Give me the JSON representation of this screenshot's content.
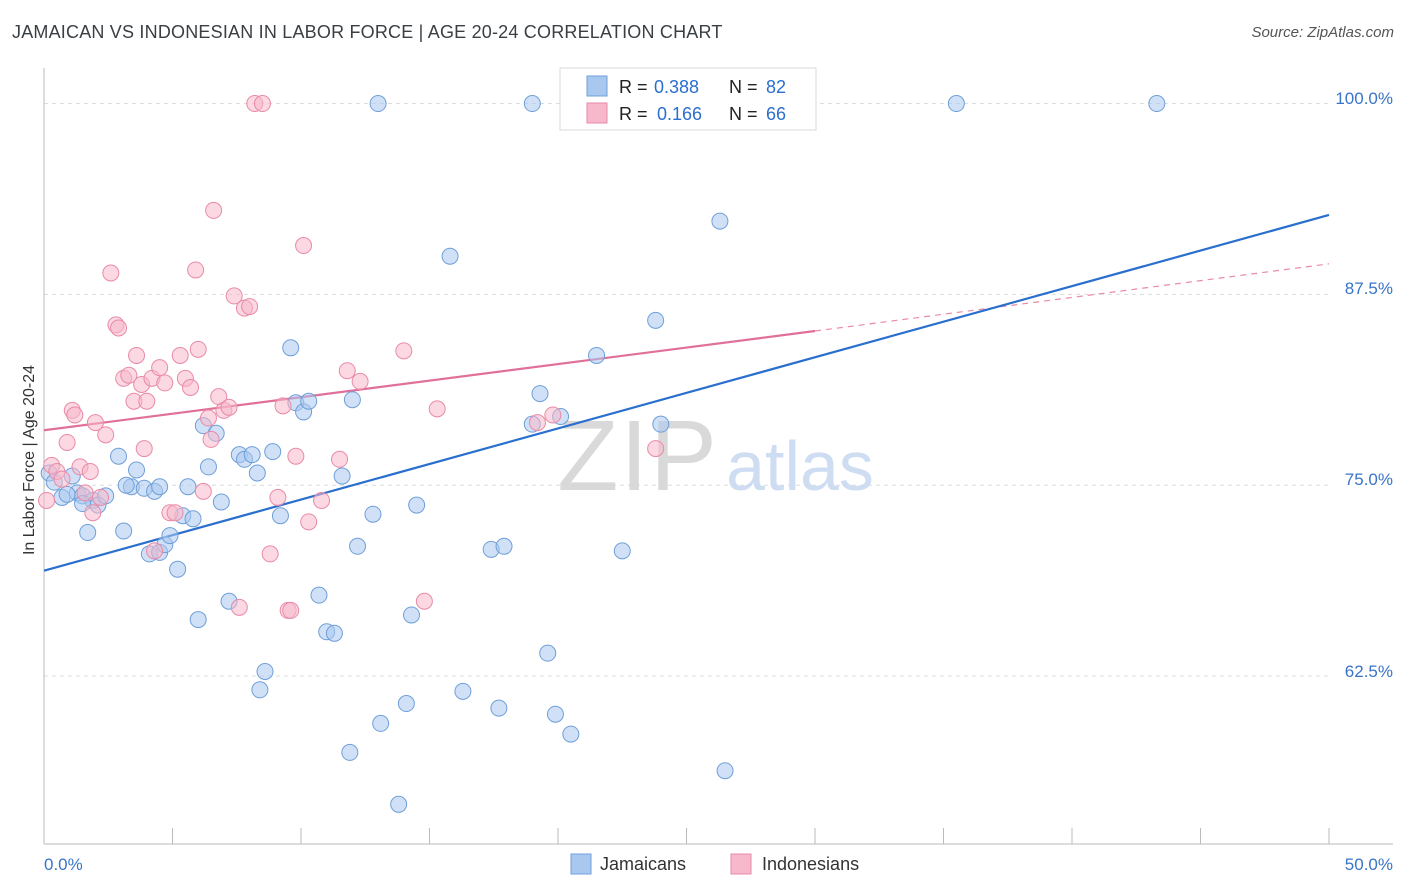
{
  "title": "JAMAICAN VS INDONESIAN IN LABOR FORCE | AGE 20-24 CORRELATION CHART",
  "source": "Source: ZipAtlas.com",
  "watermark": {
    "zip": "ZIP",
    "atlas": "atlas"
  },
  "colors": {
    "blue_fill": "#a9c8f0",
    "blue_stroke": "#6f9fd8",
    "blue_line": "#2a6fce",
    "pink_fill": "#f7b8cb",
    "pink_stroke": "#e98aa8",
    "pink_line": "#e07099",
    "axis_label": "#3a74c8",
    "grid": "#dddddd"
  },
  "legend": {
    "row1": {
      "r_label": "R =",
      "r_value": "0.388",
      "n_label": "N =",
      "n_value": "82"
    },
    "row2": {
      "r_label": "R =",
      "r_value": "0.166",
      "n_label": "N =",
      "n_value": "66"
    }
  },
  "bottom_legend": {
    "jamaicans": "Jamaicans",
    "indonesians": "Indonesians"
  },
  "chart_data": {
    "type": "scatter",
    "xlabel": "",
    "ylabel": "In Labor Force | Age 20-24",
    "x_tick_labels": [
      "0.0%",
      "50.0%"
    ],
    "y_tick_labels": [
      "100.0%",
      "87.5%",
      "75.0%",
      "62.5%"
    ],
    "xlim": [
      0,
      50
    ],
    "ylim": [
      51.5,
      102
    ],
    "y_ticks": [
      100,
      87.5,
      75,
      62.5
    ],
    "grid": true,
    "legend_position": "top-center",
    "series": [
      {
        "name": "Jamaicans",
        "color": "#a9c8f0",
        "r": 0.388,
        "n": 82,
        "trend": {
          "x": [
            0,
            50
          ],
          "y": [
            69.4,
            92.7
          ]
        },
        "points": [
          [
            0.2,
            75.8
          ],
          [
            0.4,
            75.2
          ],
          [
            0.7,
            74.2
          ],
          [
            1.1,
            75.6
          ],
          [
            1.3,
            74.5
          ],
          [
            1.5,
            74.3
          ],
          [
            1.7,
            71.9
          ],
          [
            1.9,
            74.0
          ],
          [
            2.1,
            73.7
          ],
          [
            2.4,
            74.3
          ],
          [
            2.9,
            76.9
          ],
          [
            3.1,
            72.0
          ],
          [
            3.4,
            74.9
          ],
          [
            3.6,
            76.0
          ],
          [
            3.9,
            74.8
          ],
          [
            4.1,
            70.5
          ],
          [
            4.3,
            74.6
          ],
          [
            4.5,
            70.6
          ],
          [
            4.7,
            71.1
          ],
          [
            4.9,
            71.7
          ],
          [
            5.2,
            69.5
          ],
          [
            5.4,
            73.0
          ],
          [
            5.6,
            74.9
          ],
          [
            5.8,
            72.8
          ],
          [
            6.0,
            66.2
          ],
          [
            6.2,
            78.9
          ],
          [
            6.4,
            76.2
          ],
          [
            6.7,
            78.4
          ],
          [
            6.9,
            73.9
          ],
          [
            7.2,
            67.4
          ],
          [
            7.6,
            77.0
          ],
          [
            7.8,
            76.7
          ],
          [
            8.1,
            77.0
          ],
          [
            8.4,
            61.6
          ],
          [
            8.6,
            62.8
          ],
          [
            8.9,
            77.2
          ],
          [
            9.2,
            73.0
          ],
          [
            9.6,
            84.0
          ],
          [
            9.8,
            80.4
          ],
          [
            10.1,
            79.8
          ],
          [
            10.3,
            80.5
          ],
          [
            10.7,
            67.8
          ],
          [
            11.0,
            65.4
          ],
          [
            11.3,
            65.3
          ],
          [
            11.6,
            75.6
          ],
          [
            11.9,
            57.5
          ],
          [
            12.0,
            80.6
          ],
          [
            12.2,
            71.0
          ],
          [
            12.8,
            73.1
          ],
          [
            13.1,
            59.4
          ],
          [
            13.0,
            100.0
          ],
          [
            14.1,
            60.7
          ],
          [
            14.3,
            66.5
          ],
          [
            14.5,
            73.7
          ],
          [
            15.8,
            90.0
          ],
          [
            16.3,
            61.5
          ],
          [
            17.4,
            70.8
          ],
          [
            17.9,
            71.0
          ],
          [
            17.7,
            60.4
          ],
          [
            19.0,
            79.0
          ],
          [
            19.0,
            100.0
          ],
          [
            19.3,
            81.0
          ],
          [
            19.6,
            64.0
          ],
          [
            19.9,
            60.0
          ],
          [
            20.1,
            79.5
          ],
          [
            20.5,
            58.7
          ],
          [
            21.5,
            83.5
          ],
          [
            22.5,
            70.7
          ],
          [
            23.8,
            85.8
          ],
          [
            24.0,
            79.0
          ],
          [
            26.3,
            92.3
          ],
          [
            26.5,
            56.3
          ],
          [
            27.4,
            100.0
          ],
          [
            28.8,
            100.0
          ],
          [
            35.5,
            100.0
          ],
          [
            43.3,
            100.0
          ],
          [
            1.5,
            73.8
          ],
          [
            3.2,
            75.0
          ],
          [
            8.3,
            75.8
          ],
          [
            4.5,
            74.9
          ],
          [
            0.9,
            74.4
          ],
          [
            13.8,
            54.1
          ]
        ]
      },
      {
        "name": "Indonesians",
        "color": "#f7b8cb",
        "r": 0.166,
        "n": 66,
        "trend": {
          "x": [
            0,
            30
          ],
          "y": [
            78.6,
            85.1
          ]
        },
        "trend_extension": {
          "x": [
            30,
            50
          ],
          "y": [
            85.1,
            89.5
          ]
        },
        "points": [
          [
            0.1,
            74.0
          ],
          [
            0.3,
            76.3
          ],
          [
            0.5,
            75.9
          ],
          [
            0.7,
            75.4
          ],
          [
            0.9,
            77.8
          ],
          [
            1.1,
            79.9
          ],
          [
            1.2,
            79.6
          ],
          [
            1.4,
            76.2
          ],
          [
            1.6,
            74.5
          ],
          [
            1.8,
            75.9
          ],
          [
            1.9,
            73.2
          ],
          [
            2.0,
            79.1
          ],
          [
            2.4,
            78.3
          ],
          [
            2.6,
            88.9
          ],
          [
            2.8,
            85.5
          ],
          [
            2.9,
            85.3
          ],
          [
            3.1,
            82.0
          ],
          [
            3.3,
            82.2
          ],
          [
            3.5,
            80.5
          ],
          [
            3.6,
            83.5
          ],
          [
            3.8,
            81.6
          ],
          [
            3.9,
            77.4
          ],
          [
            4.0,
            80.5
          ],
          [
            4.2,
            82.0
          ],
          [
            4.3,
            70.7
          ],
          [
            4.5,
            82.7
          ],
          [
            4.7,
            81.7
          ],
          [
            4.9,
            73.2
          ],
          [
            5.1,
            73.2
          ],
          [
            5.3,
            83.5
          ],
          [
            5.5,
            82.0
          ],
          [
            5.7,
            81.4
          ],
          [
            5.9,
            89.1
          ],
          [
            6.0,
            83.9
          ],
          [
            6.2,
            74.6
          ],
          [
            6.4,
            79.4
          ],
          [
            6.6,
            93.0
          ],
          [
            6.8,
            80.8
          ],
          [
            7.0,
            79.9
          ],
          [
            7.2,
            80.1
          ],
          [
            7.4,
            87.4
          ],
          [
            7.6,
            67.0
          ],
          [
            7.8,
            86.6
          ],
          [
            8.0,
            86.7
          ],
          [
            8.2,
            100.0
          ],
          [
            8.5,
            100.0
          ],
          [
            8.8,
            70.5
          ],
          [
            9.1,
            74.2
          ],
          [
            9.3,
            80.2
          ],
          [
            9.5,
            66.8
          ],
          [
            9.6,
            66.8
          ],
          [
            9.8,
            76.9
          ],
          [
            10.1,
            90.7
          ],
          [
            10.3,
            72.6
          ],
          [
            10.8,
            74.0
          ],
          [
            11.5,
            76.7
          ],
          [
            11.8,
            82.5
          ],
          [
            12.3,
            81.8
          ],
          [
            14.0,
            83.8
          ],
          [
            14.8,
            67.4
          ],
          [
            15.3,
            80.0
          ],
          [
            19.2,
            79.1
          ],
          [
            19.8,
            79.6
          ],
          [
            23.8,
            77.4
          ],
          [
            2.2,
            74.2
          ],
          [
            6.5,
            78.0
          ]
        ]
      }
    ]
  }
}
